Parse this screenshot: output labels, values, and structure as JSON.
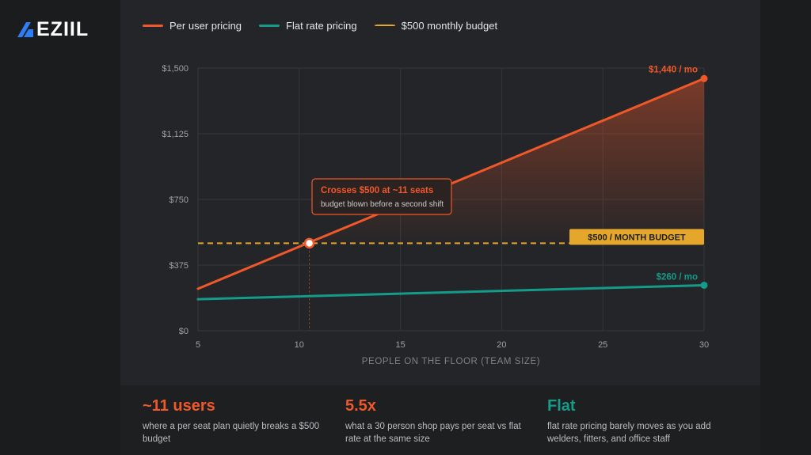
{
  "brand": {
    "name": "EZIIL",
    "logo_icon": "eziil-logo-icon"
  },
  "colors": {
    "per_user": "#f0582a",
    "flat": "#159b89",
    "budget": "#e5a62c",
    "grid": "#34373a",
    "axis_text": "#9ea2a6"
  },
  "legend": {
    "per_user": "Per user pricing",
    "flat": "Flat rate pricing",
    "budget": "$500 monthly budget"
  },
  "chart_data": {
    "type": "line",
    "xlabel": "PEOPLE ON THE FLOOR (TEAM SIZE)",
    "ylabel": "",
    "xlim": [
      5,
      30
    ],
    "ylim": [
      0,
      1500
    ],
    "x_ticks": [
      5,
      10,
      15,
      20,
      25,
      30
    ],
    "y_ticks": [
      0,
      375,
      750,
      1125,
      1500
    ],
    "y_tick_labels": [
      "$0",
      "$375",
      "$750",
      "$1,125",
      "$1,500"
    ],
    "grid": true,
    "series": [
      {
        "name": "Per user pricing",
        "x": [
          5,
          30
        ],
        "y": [
          240,
          1440
        ],
        "end_label": "$1,440 / mo",
        "area_fill": true
      },
      {
        "name": "Flat rate pricing",
        "x": [
          5,
          30
        ],
        "y": [
          180,
          260
        ],
        "end_label": "$260 / mo"
      }
    ],
    "budget_line": {
      "y": 500,
      "label": "$500 / MONTH BUDGET"
    },
    "crossover": {
      "x": 10.5,
      "y": 500,
      "title": "Crosses $500 at ~11 seats",
      "subtitle": "budget blown before a second shift"
    }
  },
  "stats": [
    {
      "value": "~11 users",
      "desc": "where a per seat plan quietly breaks a $500 budget"
    },
    {
      "value": "5.5x",
      "desc": "what a 30 person shop pays per seat vs flat rate at the same size"
    },
    {
      "value": "Flat",
      "desc": "flat rate pricing barely moves as you add welders, fitters, and office staff"
    }
  ]
}
